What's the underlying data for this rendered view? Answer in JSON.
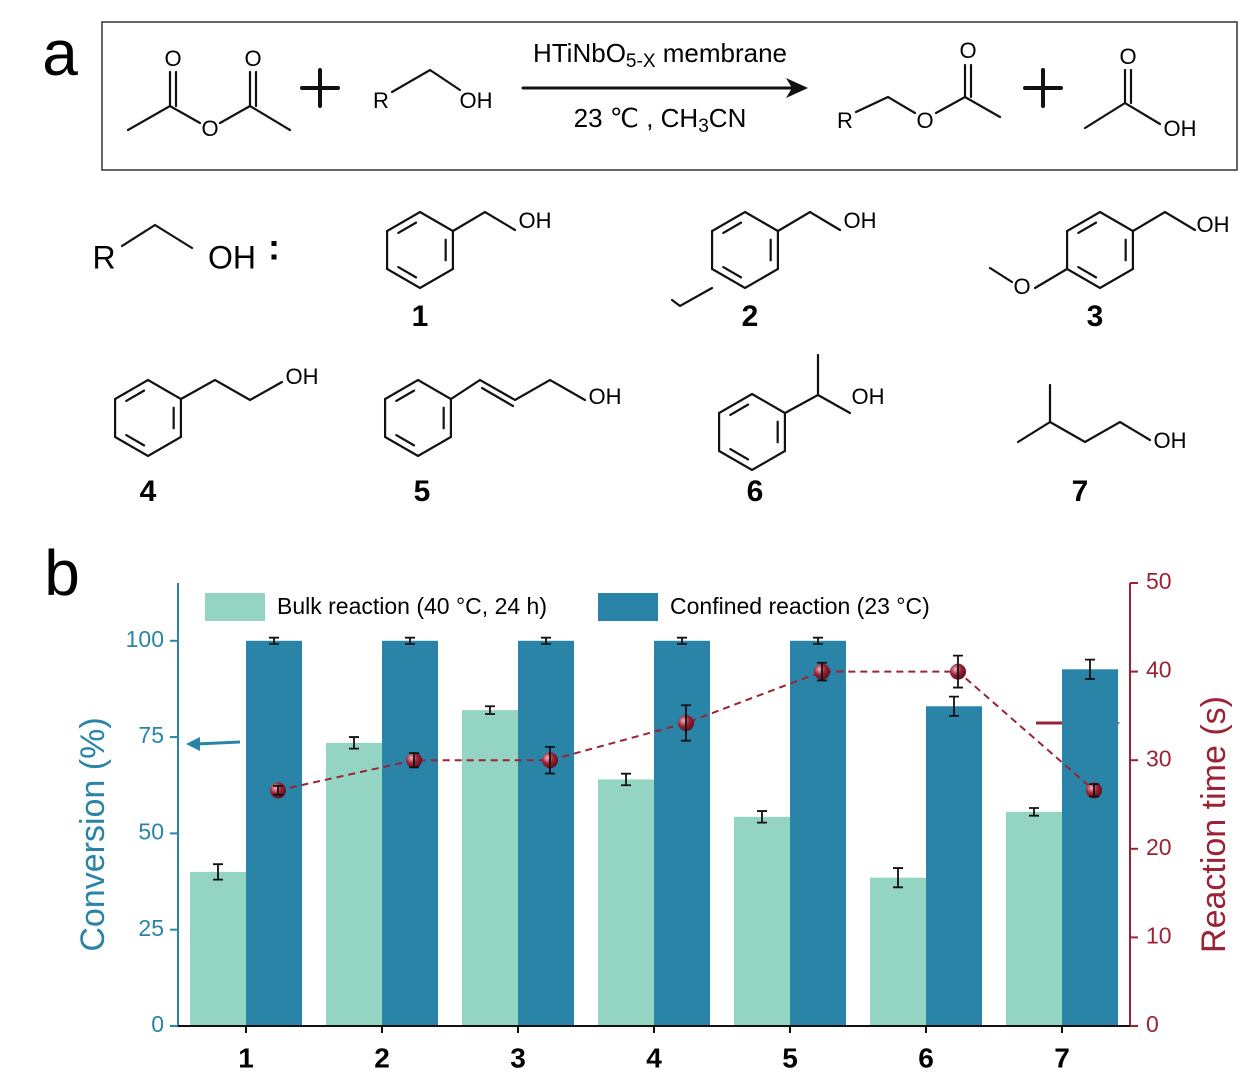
{
  "panel_a": {
    "label": "a",
    "scheme": {
      "anhydride": [
        "O",
        "O",
        "O"
      ],
      "alcohol": [
        "R",
        "OH"
      ],
      "catalyst": {
        "formula": "HTiNbO",
        "subscript": "5-X",
        "suffix": " membrane"
      },
      "conditions": {
        "text": "23 ℃ , CH",
        "subscript": "3",
        "suffix": "CN"
      },
      "ester": [
        "R",
        "O",
        "O"
      ],
      "acid": [
        "O",
        "OH"
      ]
    },
    "substrates": {
      "generic": [
        "R",
        "OH",
        ":"
      ],
      "compounds": [
        {
          "number": "1",
          "atoms": [
            "OH"
          ]
        },
        {
          "number": "2",
          "atoms": [
            "OH"
          ]
        },
        {
          "number": "3",
          "atoms": [
            "OH",
            "O"
          ]
        },
        {
          "number": "4",
          "atoms": [
            "OH"
          ]
        },
        {
          "number": "5",
          "atoms": [
            "OH"
          ]
        },
        {
          "number": "6",
          "atoms": [
            "OH"
          ]
        },
        {
          "number": "7",
          "atoms": [
            "OH"
          ]
        }
      ]
    }
  },
  "chart_data": {
    "type": "bar",
    "panel_label": "b",
    "categories": [
      "1",
      "2",
      "3",
      "4",
      "5",
      "6",
      "7"
    ],
    "ylabel": "Conversion (%)",
    "y2label": "Reaction time (s)",
    "ylim": [
      0,
      115
    ],
    "yticks": [
      0,
      25,
      50,
      75,
      100
    ],
    "y2lim": [
      0,
      50
    ],
    "y2ticks": [
      0,
      10,
      20,
      30,
      40,
      50
    ],
    "legend": "top",
    "series": [
      {
        "name": "Bulk reaction (40 °C, 24 h)",
        "color": "#93d5c2",
        "values": [
          40,
          73.5,
          82,
          64,
          54.3,
          38.5,
          55.6
        ],
        "errors": [
          2,
          1.5,
          1,
          1.5,
          1.5,
          2.5,
          1
        ]
      },
      {
        "name": "Confined reaction (23 °C)",
        "color": "#2a84a8",
        "values": [
          100,
          100,
          100,
          100,
          100,
          83,
          92.6
        ],
        "errors": [
          0.8,
          0.8,
          0.8,
          0.8,
          0.8,
          2.5,
          2.5
        ]
      },
      {
        "type": "line",
        "axis": "y2",
        "color": "#9b2335",
        "values": [
          26.6,
          30,
          30,
          34.2,
          40,
          40,
          26.6
        ],
        "errors": [
          0.5,
          0.8,
          1.5,
          2,
          1,
          1.8,
          0.7
        ]
      }
    ]
  }
}
